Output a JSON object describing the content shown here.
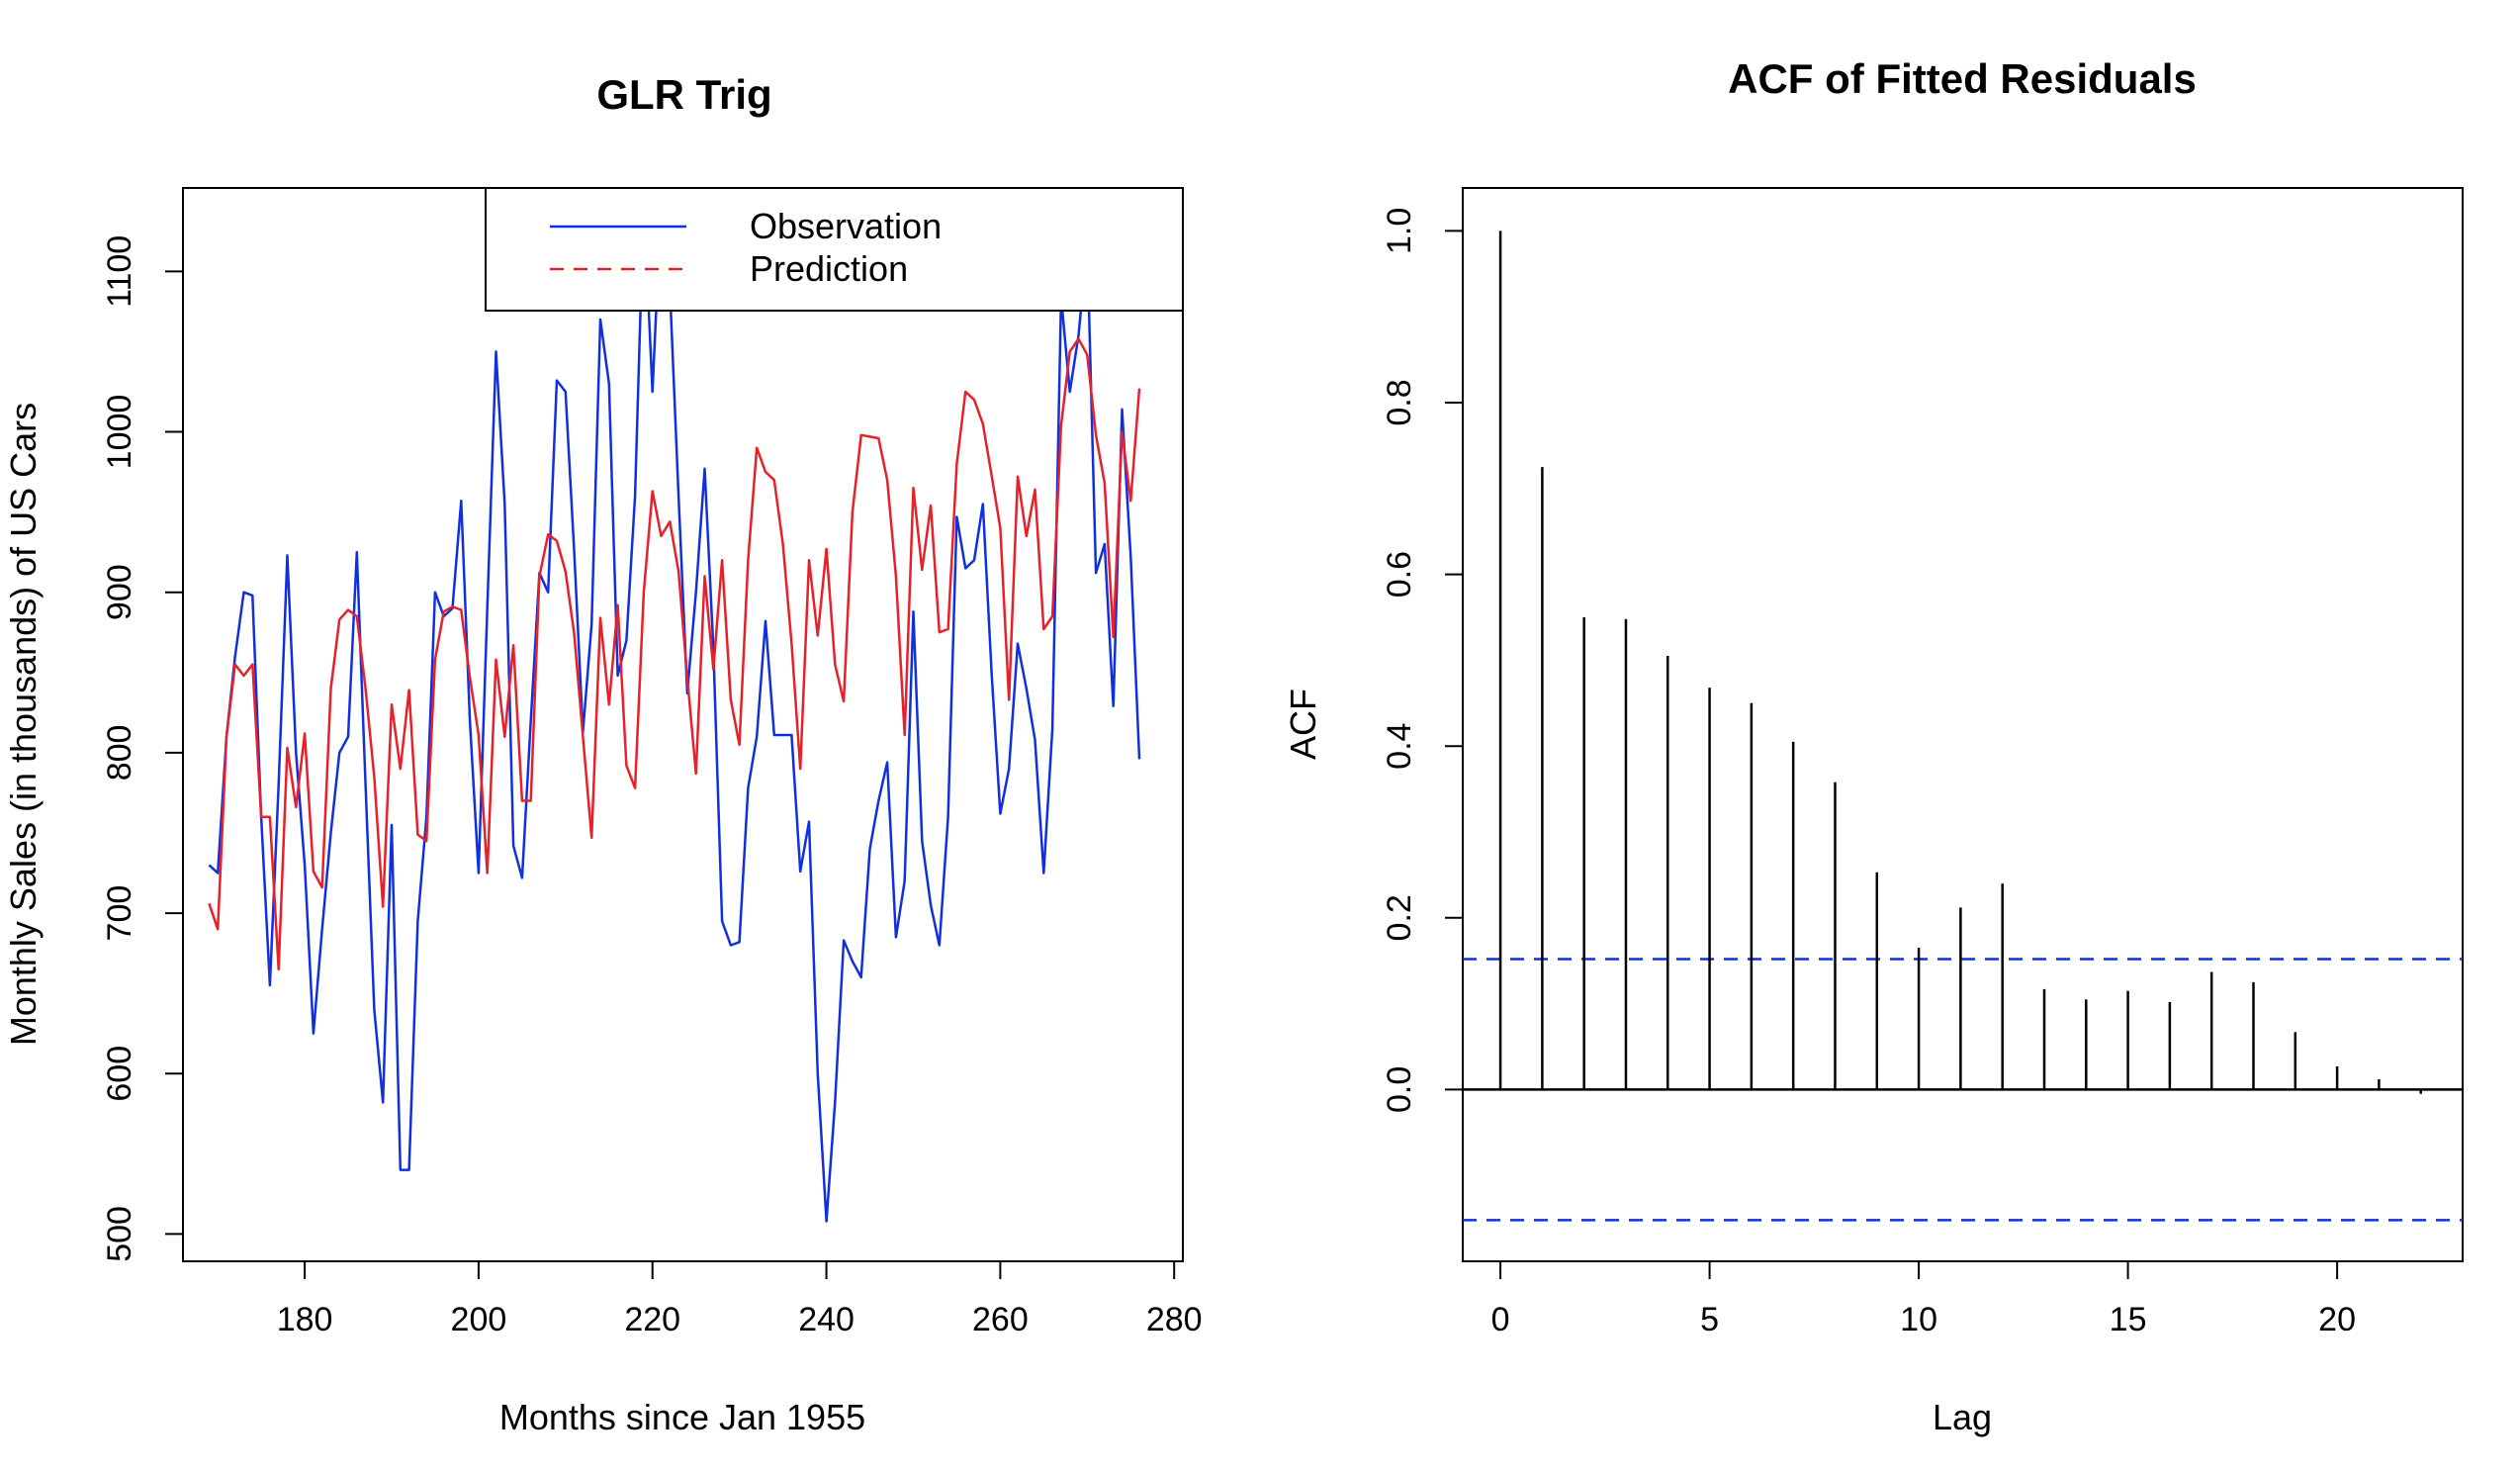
{
  "chart_data": [
    {
      "type": "line",
      "title": "GLR Trig",
      "xlabel": "Months since Jan 1955",
      "ylabel": "Monthly Sales (in thousands) of US Cars",
      "xlim": [
        166,
        281
      ],
      "ylim": [
        483,
        1152
      ],
      "xticks": [
        180,
        200,
        220,
        240,
        260,
        280
      ],
      "yticks": [
        500,
        600,
        700,
        800,
        900,
        1000,
        1100
      ],
      "legend_position": "top-right",
      "x_start": 169,
      "series": [
        {
          "name": "Observation",
          "color": "#1030E0",
          "dash": "solid",
          "values": [
            730,
            725,
            810,
            860,
            900,
            898,
            760,
            655,
            780,
            923,
            800,
            730,
            625,
            690,
            750,
            800,
            810,
            925,
            780,
            640,
            582,
            755,
            540,
            540,
            695,
            760,
            900,
            885,
            890,
            957,
            820,
            725,
            890,
            1050,
            955,
            742,
            722,
            820,
            912,
            900,
            1032,
            1025,
            925,
            813,
            880,
            1070,
            1030,
            848,
            870,
            960,
            1145,
            1025,
            1143,
            1090,
            960,
            837,
            900,
            977,
            865,
            695,
            680,
            682,
            778,
            810,
            882,
            811,
            811,
            811,
            726,
            757,
            600,
            508,
            582,
            683,
            670,
            660,
            740,
            770,
            794,
            685,
            720,
            888,
            745,
            705,
            680,
            760,
            947,
            915,
            920,
            955,
            850,
            762,
            790,
            868,
            840,
            808,
            725,
            815,
            1084,
            1025,
            1060,
            1118,
            912,
            930,
            829,
            1014,
            922,
            796
          ]
        },
        {
          "name": "Prediction",
          "color": "#E8202A",
          "dash": "dashed",
          "values": [
            706,
            690,
            810,
            855,
            848,
            855,
            760,
            760,
            665,
            803,
            766,
            812,
            726,
            716,
            840,
            883,
            889,
            885,
            840,
            785,
            704,
            830,
            790,
            839,
            749,
            745,
            858,
            888,
            891,
            889,
            847,
            811,
            725,
            858,
            810,
            867,
            770,
            770,
            910,
            936,
            932,
            913,
            874,
            810,
            747,
            884,
            830,
            892,
            792,
            778,
            900,
            963,
            935,
            944,
            913,
            847,
            787,
            910,
            852,
            920,
            833,
            805,
            920,
            990,
            975,
            970,
            930,
            868,
            790,
            920,
            873,
            927,
            855,
            832,
            950,
            998,
            997,
            996,
            970,
            910,
            811,
            965,
            914,
            954,
            875,
            877,
            980,
            1025,
            1020,
            1005,
            973,
            940,
            833,
            972,
            935,
            964,
            877,
            885,
            1004,
            1050,
            1058,
            1048,
            998,
            968,
            872,
            1000,
            957,
            1027
          ]
        }
      ]
    },
    {
      "type": "bar",
      "title": "ACF of Fitted Residuals",
      "xlabel": "Lag",
      "ylabel": "ACF",
      "xlim": [
        -0.9,
        23.0
      ],
      "ylim": [
        -0.2,
        1.05
      ],
      "xticks": [
        0,
        5,
        10,
        15,
        20
      ],
      "yticks": [
        0.0,
        0.2,
        0.4,
        0.6,
        0.8,
        1.0
      ],
      "lags": [
        0,
        1,
        2,
        3,
        4,
        5,
        6,
        7,
        8,
        9,
        10,
        11,
        12,
        13,
        14,
        15,
        16,
        17,
        18,
        19,
        20,
        21,
        22
      ],
      "values": [
        1.0,
        0.725,
        0.55,
        0.548,
        0.505,
        0.468,
        0.45,
        0.405,
        0.358,
        0.253,
        0.165,
        0.212,
        0.24,
        0.117,
        0.105,
        0.115,
        0.102,
        0.137,
        0.125,
        0.067,
        0.027,
        0.012,
        -0.005
      ],
      "confidence_band": [
        0.152,
        -0.152
      ],
      "band_color": "#1030E0"
    }
  ]
}
